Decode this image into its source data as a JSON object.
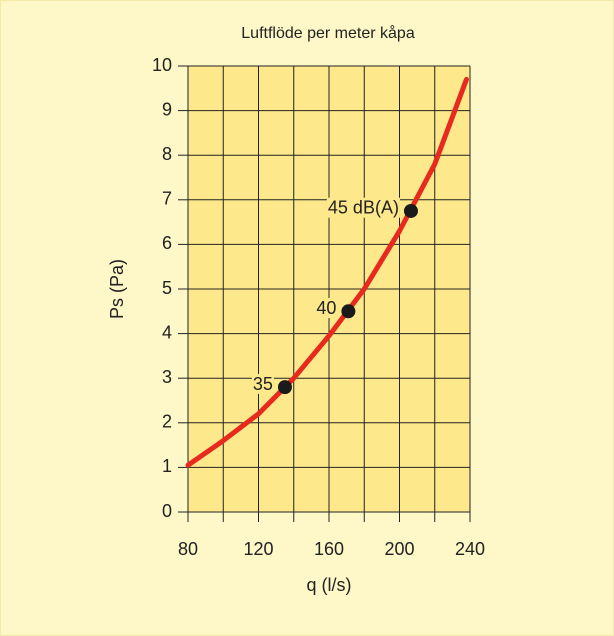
{
  "chart_data": {
    "type": "line",
    "title": "Luftflöde per meter kåpa",
    "x_label": "q (l/s)",
    "y_label": "Ps (Pa)",
    "xlim": [
      80,
      240
    ],
    "ylim": [
      0,
      10
    ],
    "xticks": [
      80,
      120,
      160,
      200,
      240
    ],
    "xminorticks": [
      100,
      140,
      180,
      220
    ],
    "yticks": [
      0,
      1,
      2,
      3,
      4,
      5,
      6,
      7,
      8,
      9,
      10
    ],
    "grid": true,
    "series": [
      {
        "color": "#e82a1e",
        "x": [
          80,
          100,
          120,
          140,
          160,
          180,
          200,
          220,
          238
        ],
        "values": [
          1.05,
          1.6,
          2.2,
          3.0,
          3.95,
          5.0,
          6.3,
          7.8,
          9.7
        ]
      }
    ],
    "points": {
      "color": "#1a1a1a",
      "x": [
        135,
        171,
        206.5
      ],
      "values": [
        2.8,
        4.5,
        6.75
      ],
      "labels": [
        "35",
        "40",
        "45 dB(A)"
      ]
    }
  }
}
